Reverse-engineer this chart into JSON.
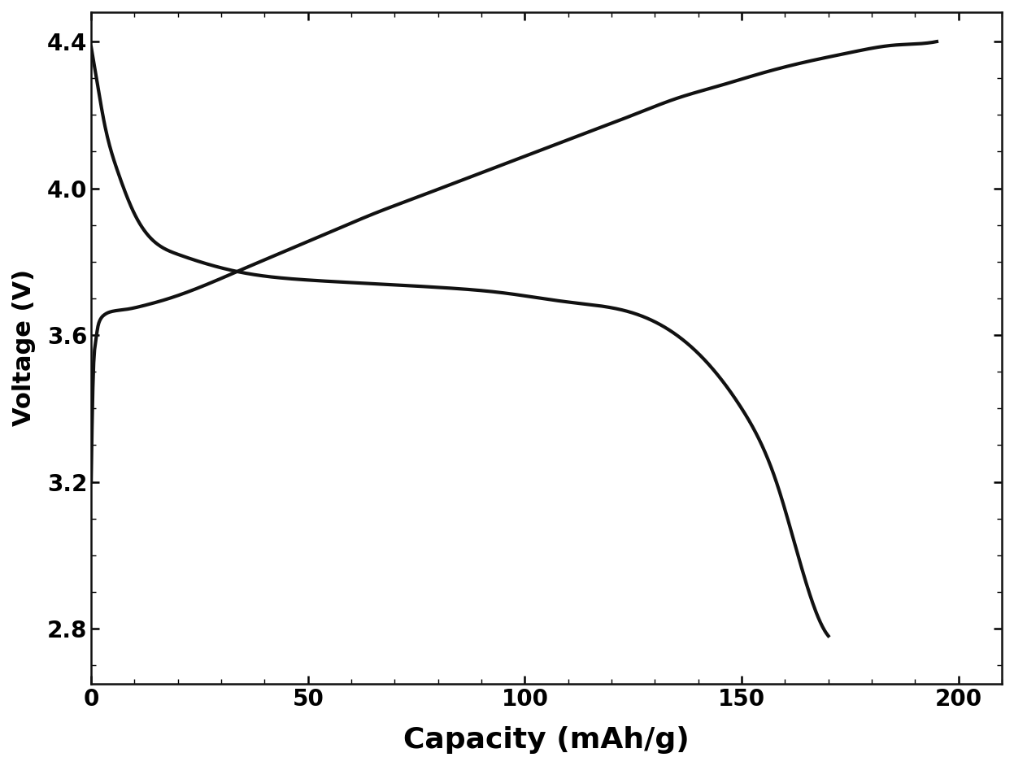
{
  "title": "",
  "xlabel": "Capacity (mAh/g)",
  "ylabel": "Voltage (V)",
  "xlim": [
    0,
    210
  ],
  "ylim": [
    2.65,
    4.48
  ],
  "xticks": [
    0,
    50,
    100,
    150,
    200
  ],
  "yticks": [
    2.8,
    3.2,
    3.6,
    4.0,
    4.4
  ],
  "line_color": "#111111",
  "line_width": 3.0,
  "background_color": "#ffffff",
  "charge_curve": {
    "x": [
      0.0,
      0.2,
      0.5,
      1.0,
      1.5,
      2.0,
      3.0,
      5.0,
      8.0,
      12,
      18,
      25,
      35,
      45,
      55,
      65,
      75,
      85,
      95,
      105,
      115,
      125,
      135,
      145,
      155,
      165,
      175,
      185,
      192,
      195
    ],
    "y": [
      3.2,
      3.35,
      3.5,
      3.58,
      3.62,
      3.64,
      3.655,
      3.665,
      3.67,
      3.68,
      3.7,
      3.73,
      3.78,
      3.83,
      3.88,
      3.93,
      3.975,
      4.02,
      4.065,
      4.11,
      4.155,
      4.2,
      4.245,
      4.28,
      4.315,
      4.345,
      4.37,
      4.39,
      4.395,
      4.4
    ]
  },
  "discharge_curve": {
    "x": [
      0,
      0.5,
      1.5,
      3.0,
      6.0,
      10,
      20,
      35,
      50,
      65,
      80,
      95,
      110,
      125,
      140,
      150,
      158,
      163,
      167,
      170
    ],
    "y": [
      4.385,
      4.35,
      4.28,
      4.18,
      4.05,
      3.93,
      3.82,
      3.77,
      3.75,
      3.74,
      3.73,
      3.715,
      3.69,
      3.66,
      3.55,
      3.4,
      3.2,
      3.0,
      2.85,
      2.78
    ]
  },
  "xlabel_fontsize": 26,
  "ylabel_fontsize": 22,
  "tick_fontsize": 20,
  "xlabel_fontweight": "bold",
  "ylabel_fontweight": "bold",
  "tick_fontweight": "bold"
}
